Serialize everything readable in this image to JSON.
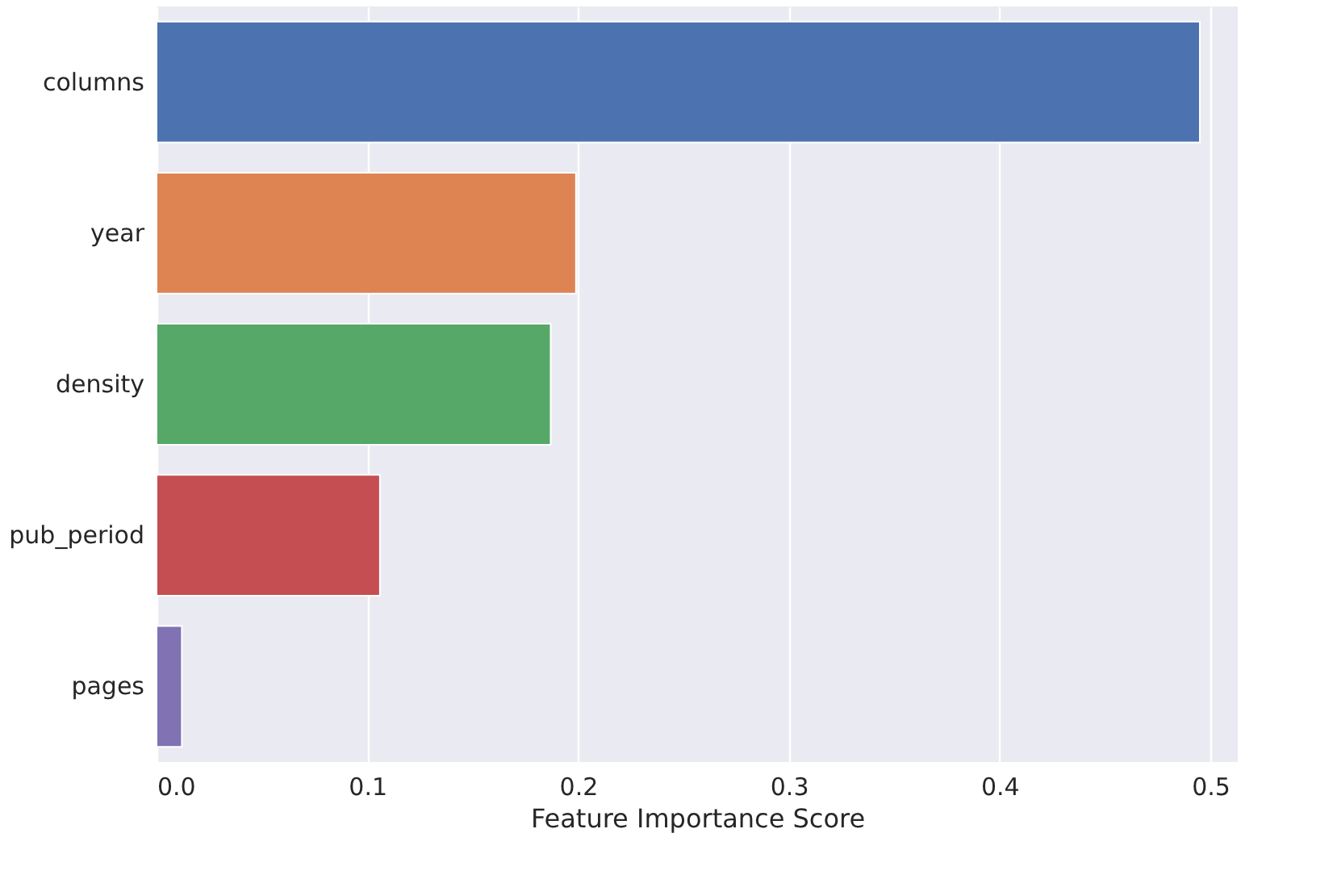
{
  "chart_data": {
    "type": "bar",
    "orientation": "horizontal",
    "xlabel": "Feature Importance Score",
    "categories": [
      "columns",
      "year",
      "density",
      "pub_period",
      "pages"
    ],
    "values": [
      0.495,
      0.199,
      0.187,
      0.106,
      0.012
    ],
    "colors": [
      "#4c72b0",
      "#dd8452",
      "#55a868",
      "#c44e52",
      "#8172b3"
    ],
    "xlim": [
      0,
      0.513
    ],
    "xticks": [
      {
        "value": 0,
        "label": "0.0"
      },
      0.1,
      0.2,
      0.3,
      0.4,
      0.5
    ],
    "grid": "x"
  }
}
